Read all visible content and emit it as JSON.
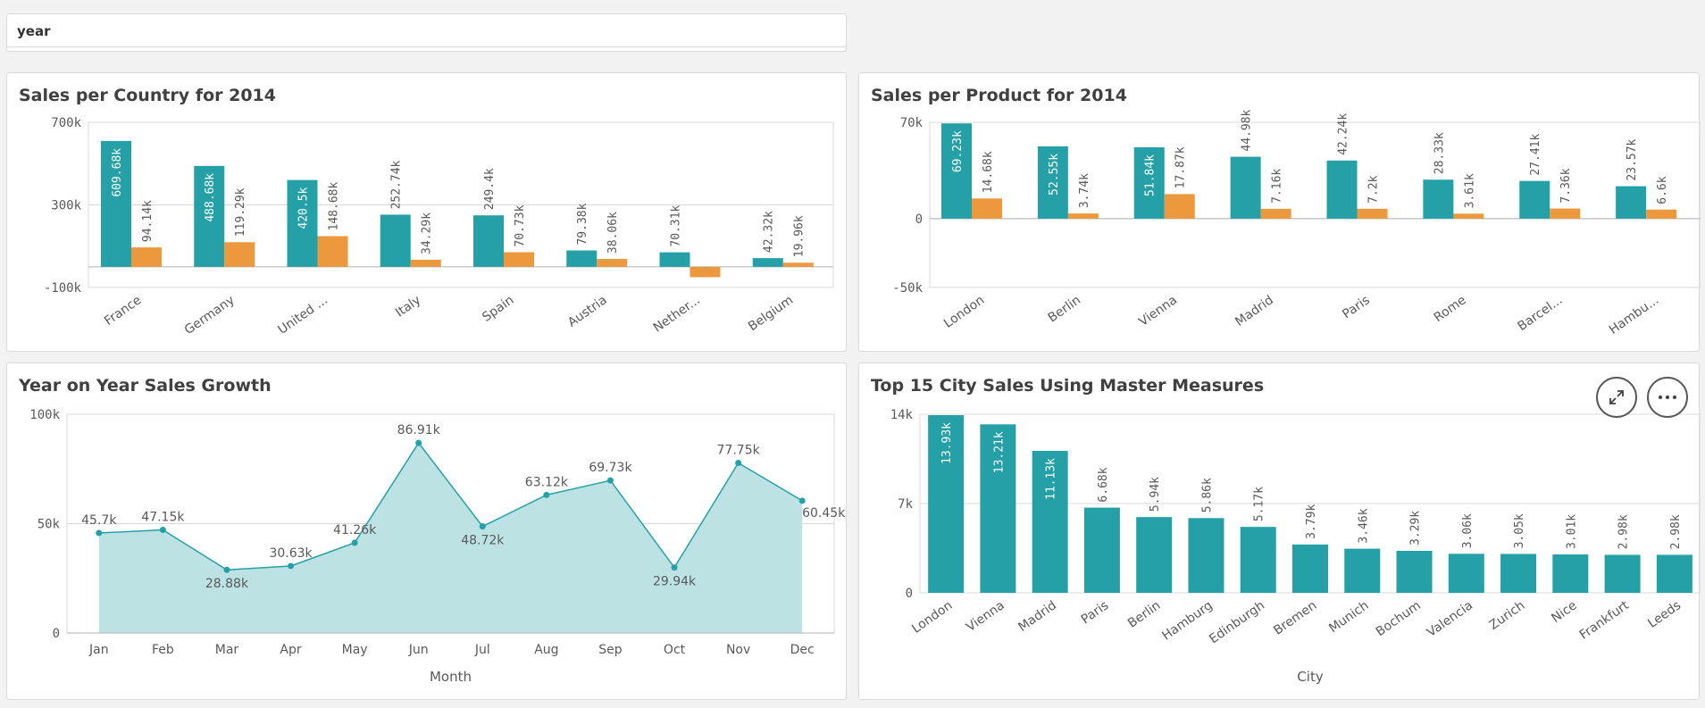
{
  "filter": {
    "label": "year"
  },
  "colors": {
    "teal": "#26a0a7",
    "orange": "#ec983d",
    "area": "#bde2e4",
    "grid": "#d9d9d9",
    "axis": "#595959"
  },
  "panels": {
    "country": {
      "title": "Sales per Country for 2014"
    },
    "product": {
      "title": "Sales per Product for 2014"
    },
    "growth": {
      "title": "Year on Year Sales Growth"
    },
    "city": {
      "title": "Top 15 City Sales Using Master Measures",
      "expand_icon": "expand-icon",
      "more_icon": "more-icon"
    }
  },
  "chart_data": [
    {
      "id": "country",
      "type": "bar",
      "title": "Sales per Country for 2014",
      "categories": [
        "France",
        "Germany",
        "United ...",
        "Italy",
        "Spain",
        "Austria",
        "Nether...",
        "Belgium"
      ],
      "series": [
        {
          "values": [
            609.68,
            488.68,
            420.5,
            252.74,
            249.4,
            79.38,
            70.31,
            42.32
          ],
          "labels": [
            "609.68k",
            "488.68k",
            "420.5k",
            "252.74k",
            "249.4k",
            "79.38k",
            "70.31k",
            "42.32k"
          ]
        },
        {
          "values": [
            94.14,
            119.29,
            148.68,
            34.29,
            70.73,
            38.06,
            -50,
            19.96
          ],
          "labels": [
            "94.14k",
            "119.29k",
            "148.68k",
            "34.29k",
            "70.73k",
            "38.06k",
            "",
            "19.96k"
          ]
        }
      ],
      "ylim": [
        -100,
        700
      ],
      "yticks": [
        {
          "v": 700,
          "label": "700k"
        },
        {
          "v": 300,
          "label": "300k"
        },
        {
          "v": -100,
          "label": "-100k"
        }
      ]
    },
    {
      "id": "product",
      "type": "bar",
      "title": "Sales per Product for 2014",
      "categories": [
        "London",
        "Berlin",
        "Vienna",
        "Madrid",
        "Paris",
        "Rome",
        "Barcel...",
        "Hambu..."
      ],
      "series": [
        {
          "values": [
            69.23,
            52.55,
            51.84,
            44.98,
            42.24,
            28.33,
            27.41,
            23.57
          ],
          "labels": [
            "69.23k",
            "52.55k",
            "51.84k",
            "44.98k",
            "42.24k",
            "28.33k",
            "27.41k",
            "23.57k"
          ]
        },
        {
          "values": [
            14.68,
            3.74,
            17.87,
            7.16,
            7.2,
            3.61,
            7.36,
            6.6
          ],
          "labels": [
            "14.68k",
            "3.74k",
            "17.87k",
            "7.16k",
            "7.2k",
            "3.61k",
            "7.36k",
            "6.6k"
          ]
        }
      ],
      "ylim": [
        -50,
        70
      ],
      "yticks": [
        {
          "v": 70,
          "label": "70k"
        },
        {
          "v": 0,
          "label": "0"
        },
        {
          "v": -50,
          "label": "-50k"
        }
      ]
    },
    {
      "id": "growth",
      "type": "area",
      "title": "Year on Year Sales Growth",
      "xlabel": "Month",
      "categories": [
        "Jan",
        "Feb",
        "Mar",
        "Apr",
        "May",
        "Jun",
        "Jul",
        "Aug",
        "Sep",
        "Oct",
        "Nov",
        "Dec"
      ],
      "values": [
        45.7,
        47.15,
        28.88,
        30.63,
        41.26,
        86.91,
        48.72,
        63.12,
        69.73,
        29.94,
        77.75,
        60.45
      ],
      "labels": [
        "45.7k",
        "47.15k",
        "28.88k",
        "30.63k",
        "41.26k",
        "86.91k",
        "48.72k",
        "63.12k",
        "69.73k",
        "29.94k",
        "77.75k",
        "60.45k"
      ],
      "ylim": [
        0,
        100
      ],
      "yticks": [
        {
          "v": 100,
          "label": "100k"
        },
        {
          "v": 50,
          "label": "50k"
        },
        {
          "v": 0,
          "label": "0"
        }
      ]
    },
    {
      "id": "city",
      "type": "bar",
      "title": "Top 15 City Sales Using Master Measures",
      "xlabel": "City",
      "categories": [
        "London",
        "Vienna",
        "Madrid",
        "Paris",
        "Berlin",
        "Hamburg",
        "Edinburgh",
        "Bremen",
        "Munich",
        "Bochum",
        "Valencia",
        "Zurich",
        "Nice",
        "Frankfurt",
        "Leeds"
      ],
      "values": [
        13.93,
        13.21,
        11.13,
        6.68,
        5.94,
        5.86,
        5.17,
        3.79,
        3.46,
        3.29,
        3.06,
        3.05,
        3.01,
        2.98,
        2.98
      ],
      "labels": [
        "13.93k",
        "13.21k",
        "11.13k",
        "6.68k",
        "5.94k",
        "5.86k",
        "5.17k",
        "3.79k",
        "3.46k",
        "3.29k",
        "3.06k",
        "3.05k",
        "3.01k",
        "2.98k",
        "2.98k"
      ],
      "ylim": [
        0,
        14
      ],
      "yticks": [
        {
          "v": 14,
          "label": "14k"
        },
        {
          "v": 7,
          "label": "7k"
        },
        {
          "v": 0,
          "label": "0"
        }
      ]
    }
  ]
}
